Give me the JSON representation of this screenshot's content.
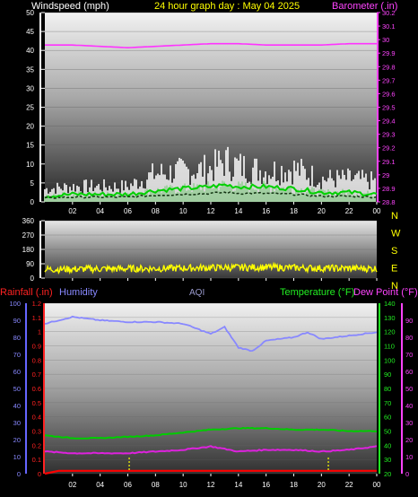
{
  "header": {
    "windspeed_label": "Windspeed (mph)",
    "title": "24 hour graph day : May 04 2025",
    "barometer_label": "Barometer (.in)"
  },
  "panel3_header": {
    "rainfall_label": "Rainfall (.in)",
    "humidity_label": "Humidity",
    "aqi_label": "AQI",
    "temperature_label": "Temperature (°F)",
    "dewpoint_label": "Dew Point (°F)"
  },
  "colors": {
    "wind": "#ffffff",
    "wind_avg": "#00d000",
    "barometer": "#ff33ff",
    "direction": "#ffff00",
    "humidity": "#8888ff",
    "temperature": "#00cc00",
    "dewpoint": "#dd22dd",
    "rain": "#ff0000",
    "aqi": "#9999cc"
  },
  "chart_data": [
    {
      "type": "line",
      "x_ticks": [
        "02",
        "04",
        "06",
        "08",
        "10",
        "12",
        "14",
        "16",
        "18",
        "20",
        "22",
        "00"
      ],
      "left_axis": {
        "ylim": [
          0,
          50
        ],
        "ticks": [
          "0",
          "5",
          "10",
          "15",
          "20",
          "25",
          "30",
          "35",
          "40",
          "45",
          "50"
        ]
      },
      "right_axis": {
        "ylim": [
          28.8,
          30.2
        ],
        "ticks": [
          "28.8",
          "28.9",
          "29",
          "29.1",
          "29.2",
          "29.3",
          "29.4",
          "29.5",
          "29.6",
          "29.7",
          "29.8",
          "29.9",
          "30",
          "30.1",
          "30.2"
        ]
      },
      "series": [
        {
          "name": "Windspeed (mph)",
          "axis": "left",
          "hours": [
            0,
            2,
            4,
            6,
            8,
            10,
            12,
            13,
            14,
            16,
            18,
            20,
            22,
            24
          ],
          "gust_max": [
            5,
            6,
            6,
            6,
            11,
            12,
            13,
            16,
            14,
            12,
            13,
            9,
            9,
            8
          ],
          "avg": [
            1.5,
            2,
            2,
            2,
            3,
            3.5,
            4,
            4.5,
            4,
            4,
            3.5,
            2.5,
            2.5,
            2
          ]
        },
        {
          "name": "Barometer (.in)",
          "axis": "right",
          "hours": [
            0,
            2,
            4,
            6,
            8,
            10,
            12,
            14,
            16,
            18,
            20,
            22,
            24
          ],
          "values": [
            29.96,
            29.96,
            29.95,
            29.94,
            29.95,
            29.96,
            29.97,
            29.97,
            29.96,
            29.96,
            29.96,
            29.97,
            29.97
          ]
        }
      ]
    },
    {
      "type": "line",
      "x_ticks": [
        "02",
        "04",
        "06",
        "08",
        "10",
        "12",
        "14",
        "16",
        "18",
        "20",
        "22",
        "00"
      ],
      "left_axis": {
        "ylim": [
          0,
          360
        ],
        "ticks": [
          "0",
          "90",
          "180",
          "270",
          "360"
        ]
      },
      "right_axis_labels": [
        "N",
        "W",
        "S",
        "E",
        "N"
      ],
      "series": [
        {
          "name": "Wind direction",
          "hours": [
            0,
            4,
            8,
            12,
            16,
            20,
            24
          ],
          "values": [
            55,
            58,
            60,
            65,
            68,
            62,
            60
          ],
          "spread": 22
        }
      ]
    },
    {
      "type": "line",
      "x_ticks": [
        "02",
        "04",
        "06",
        "08",
        "10",
        "12",
        "14",
        "16",
        "18",
        "20",
        "22",
        "00"
      ],
      "rain_axis": {
        "ylim": [
          0,
          1.2
        ],
        "ticks": [
          "0",
          "0.1",
          "0.2",
          "0.3",
          "0.4",
          "0.5",
          "0.6",
          "0.7",
          "0.8",
          "0.9",
          "1",
          "1.1",
          "1.2"
        ]
      },
      "humidity_axis": {
        "ylim": [
          0,
          100
        ],
        "ticks": [
          "0",
          "10",
          "20",
          "30",
          "40",
          "50",
          "60",
          "70",
          "80",
          "90",
          "100"
        ]
      },
      "temp_axis": {
        "ylim": [
          20,
          140
        ],
        "ticks": [
          "20",
          "30",
          "40",
          "50",
          "60",
          "70",
          "80",
          "90",
          "100",
          "110",
          "120",
          "130",
          "140"
        ]
      },
      "dew_axis": {
        "ylim": [
          0,
          100
        ],
        "ticks": [
          "0",
          "10",
          "20",
          "30",
          "40",
          "50",
          "60",
          "70",
          "80",
          "90"
        ]
      },
      "series": [
        {
          "name": "Humidity",
          "axis": "humidity",
          "hours": [
            0,
            1,
            2,
            4,
            6,
            8,
            10,
            11,
            12,
            13,
            14,
            15,
            16,
            18,
            19,
            20,
            22,
            24
          ],
          "values": [
            88,
            90,
            92,
            90,
            89,
            89,
            88,
            85,
            82,
            86,
            74,
            72,
            78,
            80,
            83,
            79,
            81,
            83
          ]
        },
        {
          "name": "Temperature (°F)",
          "axis": "temp",
          "hours": [
            0,
            2,
            4,
            6,
            8,
            10,
            12,
            14,
            16,
            18,
            20,
            22,
            24
          ],
          "values": [
            47,
            45,
            45,
            46,
            47,
            49,
            51,
            52,
            52,
            51,
            51,
            50,
            50
          ]
        },
        {
          "name": "Dew Point (°F)",
          "axis": "dew",
          "hours": [
            0,
            2,
            4,
            6,
            8,
            10,
            12,
            14,
            16,
            18,
            20,
            22,
            24
          ],
          "values": [
            13,
            12,
            12,
            12,
            13,
            14,
            16,
            13,
            14,
            14,
            13,
            14,
            16
          ]
        },
        {
          "name": "Rainfall (.in)",
          "axis": "rain",
          "hours": [
            0,
            1,
            24
          ],
          "values": [
            0,
            0.02,
            0.02
          ]
        }
      ],
      "markers_hours": [
        6.1,
        20.5
      ]
    }
  ]
}
